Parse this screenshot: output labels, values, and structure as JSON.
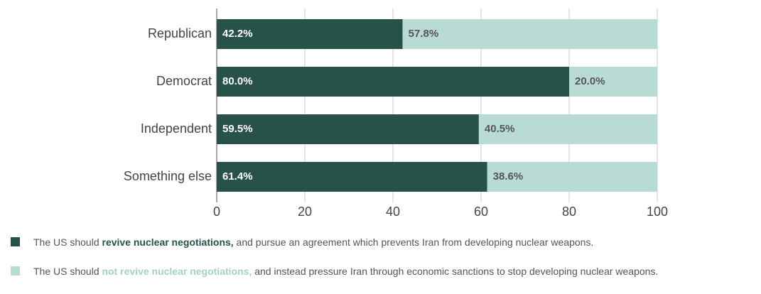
{
  "chart_data": {
    "type": "stacked_barh",
    "categories": [
      "Republican",
      "Democrat",
      "Independent",
      "Something else"
    ],
    "series": [
      {
        "name": "revive nuclear negotiations,",
        "legend_prefix": "The US should ",
        "legend_suffix": " and pursue an agreement which prevents Iran from developing nuclear weapons.",
        "color": "#26524a",
        "label_color": "#ffffff",
        "name_color": "#26524a",
        "values": [
          42.2,
          80.0,
          59.5,
          61.4
        ],
        "value_labels": [
          "42.2%",
          "80.0%",
          "59.5%",
          "61.4%"
        ]
      },
      {
        "name": "not revive nuclear negotiations,",
        "legend_prefix": "The US should ",
        "legend_suffix": " and instead pressure Iran through economic sanctions to stop developing nuclear weapons.",
        "color": "#b8dbd3",
        "label_color": "#555555",
        "name_color": "#a3d3c8",
        "values": [
          57.8,
          20.0,
          40.5,
          38.6
        ],
        "value_labels": [
          "57.8%",
          "20.0%",
          "40.5%",
          "38.6%"
        ]
      }
    ],
    "xlim": [
      0,
      100
    ],
    "xticks": [
      0,
      20,
      40,
      60,
      80,
      100
    ],
    "grid": true
  }
}
